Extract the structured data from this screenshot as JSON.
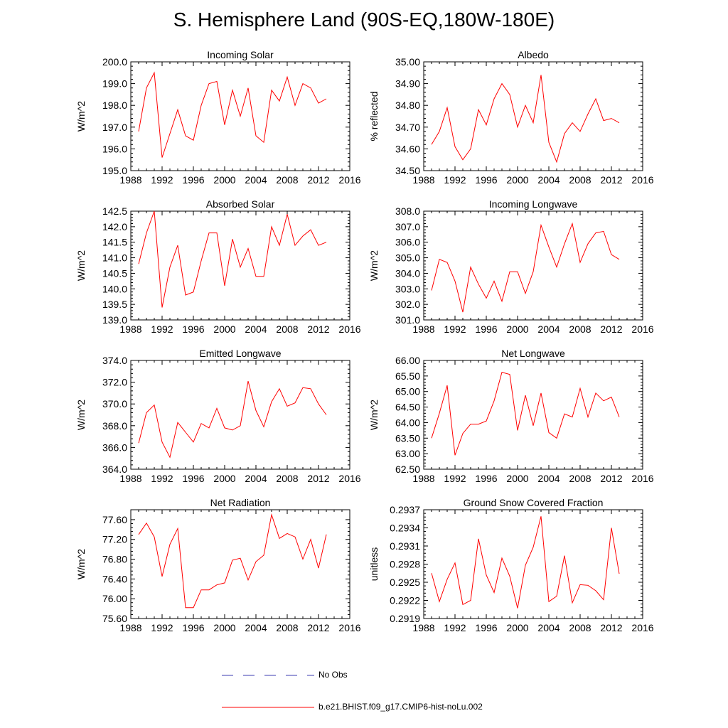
{
  "figure": {
    "title": "S. Hemisphere Land (90S-EQ,180W-180E)"
  },
  "legend": {
    "entries": [
      {
        "label": "No Obs",
        "color": "#3b3bb0",
        "style": "dashed"
      },
      {
        "label": "b.e21.BHIST.f09_g17.CMIP6-hist-noLu.002",
        "color": "#ff0000",
        "style": "solid"
      }
    ]
  },
  "chart_data": [
    {
      "type": "line",
      "title": "Incoming Solar",
      "xlabel": "",
      "ylabel": "W/m^2",
      "xlim": [
        1988,
        2016
      ],
      "ylim": [
        195.0,
        200.0
      ],
      "xticks": [
        1988,
        1992,
        1996,
        2000,
        2004,
        2008,
        2012,
        2016
      ],
      "yticks": [
        "195.0",
        "196.0",
        "197.0",
        "198.0",
        "199.0",
        "200.0"
      ],
      "series": [
        {
          "color": "#ff0000",
          "x": [
            1989,
            1990,
            1991,
            1992,
            1993,
            1994,
            1995,
            1996,
            1997,
            1998,
            1999,
            2000,
            2001,
            2002,
            2003,
            2004,
            2005,
            2006,
            2007,
            2008,
            2009,
            2010,
            2011,
            2012,
            2013
          ],
          "values": [
            196.8,
            198.8,
            199.5,
            195.6,
            196.7,
            197.8,
            196.6,
            196.4,
            198.0,
            199.0,
            199.1,
            197.1,
            198.7,
            197.5,
            198.8,
            196.6,
            196.3,
            198.7,
            198.2,
            199.3,
            198.0,
            199.0,
            198.8,
            198.1,
            198.3
          ]
        }
      ]
    },
    {
      "type": "line",
      "title": "Albedo",
      "xlabel": "",
      "ylabel": "% reflected",
      "xlim": [
        1988,
        2016
      ],
      "ylim": [
        34.5,
        35.0
      ],
      "xticks": [
        1988,
        1992,
        1996,
        2000,
        2004,
        2008,
        2012,
        2016
      ],
      "yticks": [
        "34.50",
        "34.60",
        "34.70",
        "34.80",
        "34.90",
        "35.00"
      ],
      "series": [
        {
          "color": "#ff0000",
          "x": [
            1989,
            1990,
            1991,
            1992,
            1993,
            1994,
            1995,
            1996,
            1997,
            1998,
            1999,
            2000,
            2001,
            2002,
            2003,
            2004,
            2005,
            2006,
            2007,
            2008,
            2009,
            2010,
            2011,
            2012,
            2013
          ],
          "values": [
            34.62,
            34.68,
            34.79,
            34.61,
            34.55,
            34.6,
            34.78,
            34.71,
            34.83,
            34.9,
            34.85,
            34.7,
            34.8,
            34.72,
            34.94,
            34.63,
            34.54,
            34.67,
            34.72,
            34.68,
            34.76,
            34.83,
            34.73,
            34.74,
            34.72
          ]
        }
      ]
    },
    {
      "type": "line",
      "title": "Absorbed Solar",
      "xlabel": "",
      "ylabel": "W/m^2",
      "xlim": [
        1988,
        2016
      ],
      "ylim": [
        139.0,
        142.5
      ],
      "xticks": [
        1988,
        1992,
        1996,
        2000,
        2004,
        2008,
        2012,
        2016
      ],
      "yticks": [
        "139.0",
        "139.5",
        "140.0",
        "140.5",
        "141.0",
        "141.5",
        "142.0",
        "142.5"
      ],
      "series": [
        {
          "color": "#ff0000",
          "x": [
            1989,
            1990,
            1991,
            1992,
            1993,
            1994,
            1995,
            1996,
            1997,
            1998,
            1999,
            2000,
            2001,
            2002,
            2003,
            2004,
            2005,
            2006,
            2007,
            2008,
            2009,
            2010,
            2011,
            2012,
            2013
          ],
          "values": [
            140.8,
            141.8,
            142.5,
            139.4,
            140.7,
            141.4,
            139.8,
            139.9,
            140.9,
            141.8,
            141.8,
            140.1,
            141.6,
            140.7,
            141.3,
            140.4,
            140.4,
            142.0,
            141.4,
            142.4,
            141.4,
            141.7,
            141.9,
            141.4,
            141.5
          ]
        }
      ]
    },
    {
      "type": "line",
      "title": "Incoming Longwave",
      "xlabel": "",
      "ylabel": "W/m^2",
      "xlim": [
        1988,
        2016
      ],
      "ylim": [
        301.0,
        308.0
      ],
      "xticks": [
        1988,
        1992,
        1996,
        2000,
        2004,
        2008,
        2012,
        2016
      ],
      "yticks": [
        "301.0",
        "302.0",
        "303.0",
        "304.0",
        "305.0",
        "306.0",
        "307.0",
        "308.0"
      ],
      "series": [
        {
          "color": "#ff0000",
          "x": [
            1989,
            1990,
            1991,
            1992,
            1993,
            1994,
            1995,
            1996,
            1997,
            1998,
            1999,
            2000,
            2001,
            2002,
            2003,
            2004,
            2005,
            2006,
            2007,
            2008,
            2009,
            2010,
            2011,
            2012,
            2013
          ],
          "values": [
            302.9,
            304.9,
            304.7,
            303.5,
            301.5,
            304.4,
            303.3,
            302.4,
            303.5,
            302.2,
            304.1,
            304.1,
            302.7,
            304.1,
            307.1,
            305.7,
            304.4,
            305.9,
            307.2,
            304.7,
            305.9,
            306.6,
            306.7,
            305.2,
            304.9
          ]
        }
      ]
    },
    {
      "type": "line",
      "title": "Emitted Longwave",
      "xlabel": "",
      "ylabel": "W/m^2",
      "xlim": [
        1988,
        2016
      ],
      "ylim": [
        364.0,
        374.0
      ],
      "xticks": [
        1988,
        1992,
        1996,
        2000,
        2004,
        2008,
        2012,
        2016
      ],
      "yticks": [
        "364.0",
        "366.0",
        "368.0",
        "370.0",
        "372.0",
        "374.0"
      ],
      "series": [
        {
          "color": "#ff0000",
          "x": [
            1989,
            1990,
            1991,
            1992,
            1993,
            1994,
            1995,
            1996,
            1997,
            1998,
            1999,
            2000,
            2001,
            2002,
            2003,
            2004,
            2005,
            2006,
            2007,
            2008,
            2009,
            2010,
            2011,
            2012,
            2013
          ],
          "values": [
            366.4,
            369.2,
            369.9,
            366.5,
            365.1,
            368.3,
            367.4,
            366.5,
            368.2,
            367.8,
            369.6,
            367.8,
            367.6,
            368.0,
            372.1,
            369.4,
            367.9,
            370.2,
            371.4,
            369.8,
            370.1,
            371.5,
            371.4,
            370.0,
            369.0
          ]
        }
      ]
    },
    {
      "type": "line",
      "title": "Net Longwave",
      "xlabel": "",
      "ylabel": "W/m^2",
      "xlim": [
        1988,
        2016
      ],
      "ylim": [
        62.5,
        66.0
      ],
      "xticks": [
        1988,
        1992,
        1996,
        2000,
        2004,
        2008,
        2012,
        2016
      ],
      "yticks": [
        "62.50",
        "63.00",
        "63.50",
        "64.00",
        "64.50",
        "65.00",
        "65.50",
        "66.00"
      ],
      "series": [
        {
          "color": "#ff0000",
          "x": [
            1989,
            1990,
            1991,
            1992,
            1993,
            1994,
            1995,
            1996,
            1997,
            1998,
            1999,
            2000,
            2001,
            2002,
            2003,
            2004,
            2005,
            2006,
            2007,
            2008,
            2009,
            2010,
            2011,
            2012,
            2013
          ],
          "values": [
            63.5,
            64.3,
            65.2,
            62.95,
            63.65,
            63.95,
            63.95,
            64.05,
            64.7,
            65.62,
            65.55,
            63.75,
            64.88,
            63.9,
            64.95,
            63.68,
            63.5,
            64.28,
            64.18,
            65.1,
            64.18,
            64.95,
            64.7,
            64.82,
            64.18
          ]
        }
      ]
    },
    {
      "type": "line",
      "title": "Net Radiation",
      "xlabel": "",
      "ylabel": "W/m^2",
      "xlim": [
        1988,
        2016
      ],
      "ylim": [
        75.6,
        77.8
      ],
      "xticks": [
        1988,
        1992,
        1996,
        2000,
        2004,
        2008,
        2012,
        2016
      ],
      "yticks": [
        "75.60",
        "76.00",
        "76.40",
        "76.80",
        "77.20",
        "77.60"
      ],
      "series": [
        {
          "color": "#ff0000",
          "x": [
            1989,
            1990,
            1991,
            1992,
            1993,
            1994,
            1995,
            1996,
            1997,
            1998,
            1999,
            2000,
            2001,
            2002,
            2003,
            2004,
            2005,
            2006,
            2007,
            2008,
            2009,
            2010,
            2011,
            2012,
            2013
          ],
          "values": [
            77.3,
            77.53,
            77.25,
            76.45,
            77.1,
            77.42,
            75.82,
            75.82,
            76.18,
            76.18,
            76.28,
            76.32,
            76.78,
            76.82,
            76.38,
            76.75,
            76.88,
            77.7,
            77.22,
            77.32,
            77.25,
            76.8,
            77.2,
            76.62,
            77.3
          ]
        }
      ]
    },
    {
      "type": "line",
      "title": "Ground Snow Covered Fraction",
      "xlabel": "",
      "ylabel": "unitless",
      "xlim": [
        1988,
        2016
      ],
      "ylim": [
        0.2919,
        0.2937
      ],
      "xticks": [
        1988,
        1992,
        1996,
        2000,
        2004,
        2008,
        2012,
        2016
      ],
      "yticks": [
        "0.2919",
        "0.2922",
        "0.2925",
        "0.2928",
        "0.2931",
        "0.2934",
        "0.2937"
      ],
      "series": [
        {
          "color": "#ff0000",
          "x": [
            1989,
            1990,
            1991,
            1992,
            1993,
            1994,
            1995,
            1996,
            1997,
            1998,
            1999,
            2000,
            2001,
            2002,
            2003,
            2004,
            2005,
            2006,
            2007,
            2008,
            2009,
            2010,
            2011,
            2012,
            2013
          ],
          "values": [
            0.29265,
            0.29218,
            0.29255,
            0.29282,
            0.29213,
            0.2922,
            0.29322,
            0.29262,
            0.29233,
            0.2929,
            0.2926,
            0.29207,
            0.29278,
            0.29308,
            0.29359,
            0.29218,
            0.29227,
            0.29294,
            0.29216,
            0.29246,
            0.29245,
            0.29236,
            0.29221,
            0.2934,
            0.29264
          ]
        }
      ]
    }
  ]
}
